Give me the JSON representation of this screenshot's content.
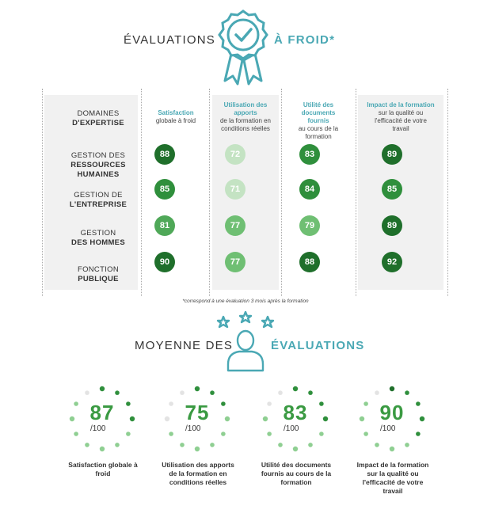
{
  "header": {
    "title_left": "ÉVALUATIONS",
    "title_right": "À FROID*",
    "badge_icon": "award-ribbon-check-icon",
    "accent": "#4aa8b4"
  },
  "table": {
    "corner": {
      "line1": "DOMAINES",
      "line2": "D'EXPERTISE"
    },
    "columns": [
      {
        "bold": "Satisfaction",
        "rest": "globale à froid"
      },
      {
        "bold": "Utilisation des apports",
        "rest": "de la formation en conditions réelles"
      },
      {
        "bold": "Utilité des documents fournis",
        "rest": "au cours de la formation"
      },
      {
        "bold": "Impact de la formation",
        "rest": "sur la qualité ou l'efficacité de votre travail"
      }
    ],
    "rows": [
      {
        "line1": "GESTION DES",
        "line2": "RESSOURCES HUMAINES",
        "scores": [
          88,
          72,
          83,
          89
        ]
      },
      {
        "line1": "GESTION DE",
        "line2": "L'ENTREPRISE",
        "scores": [
          85,
          71,
          84,
          85
        ]
      },
      {
        "line1": "GESTION",
        "line2": "DES HOMMES",
        "scores": [
          81,
          77,
          79,
          89
        ]
      },
      {
        "line1": "FONCTION",
        "line2": "PUBLIQUE",
        "scores": [
          90,
          77,
          88,
          92
        ]
      }
    ],
    "footnote": "*correspond à une évaluation 3 mois après la formation"
  },
  "averages": {
    "title_left": "MOYENNE DES",
    "title_right": "ÉVALUATIONS",
    "person_icon": "person-with-stars-icon",
    "denominator": "/100",
    "items": [
      {
        "value": "87",
        "fraction": 0.87,
        "label": "Satisfaction globale à froid"
      },
      {
        "value": "75",
        "fraction": 0.75,
        "label": "Utilisation des apports de la formation en conditions réelles"
      },
      {
        "value": "83",
        "fraction": 0.83,
        "label": "Utilité des documents fournis au cours de la formation"
      },
      {
        "value": "90",
        "fraction": 0.9,
        "label": "Impact de la formation sur la qualité ou l'efficacité de votre travail"
      }
    ]
  }
}
